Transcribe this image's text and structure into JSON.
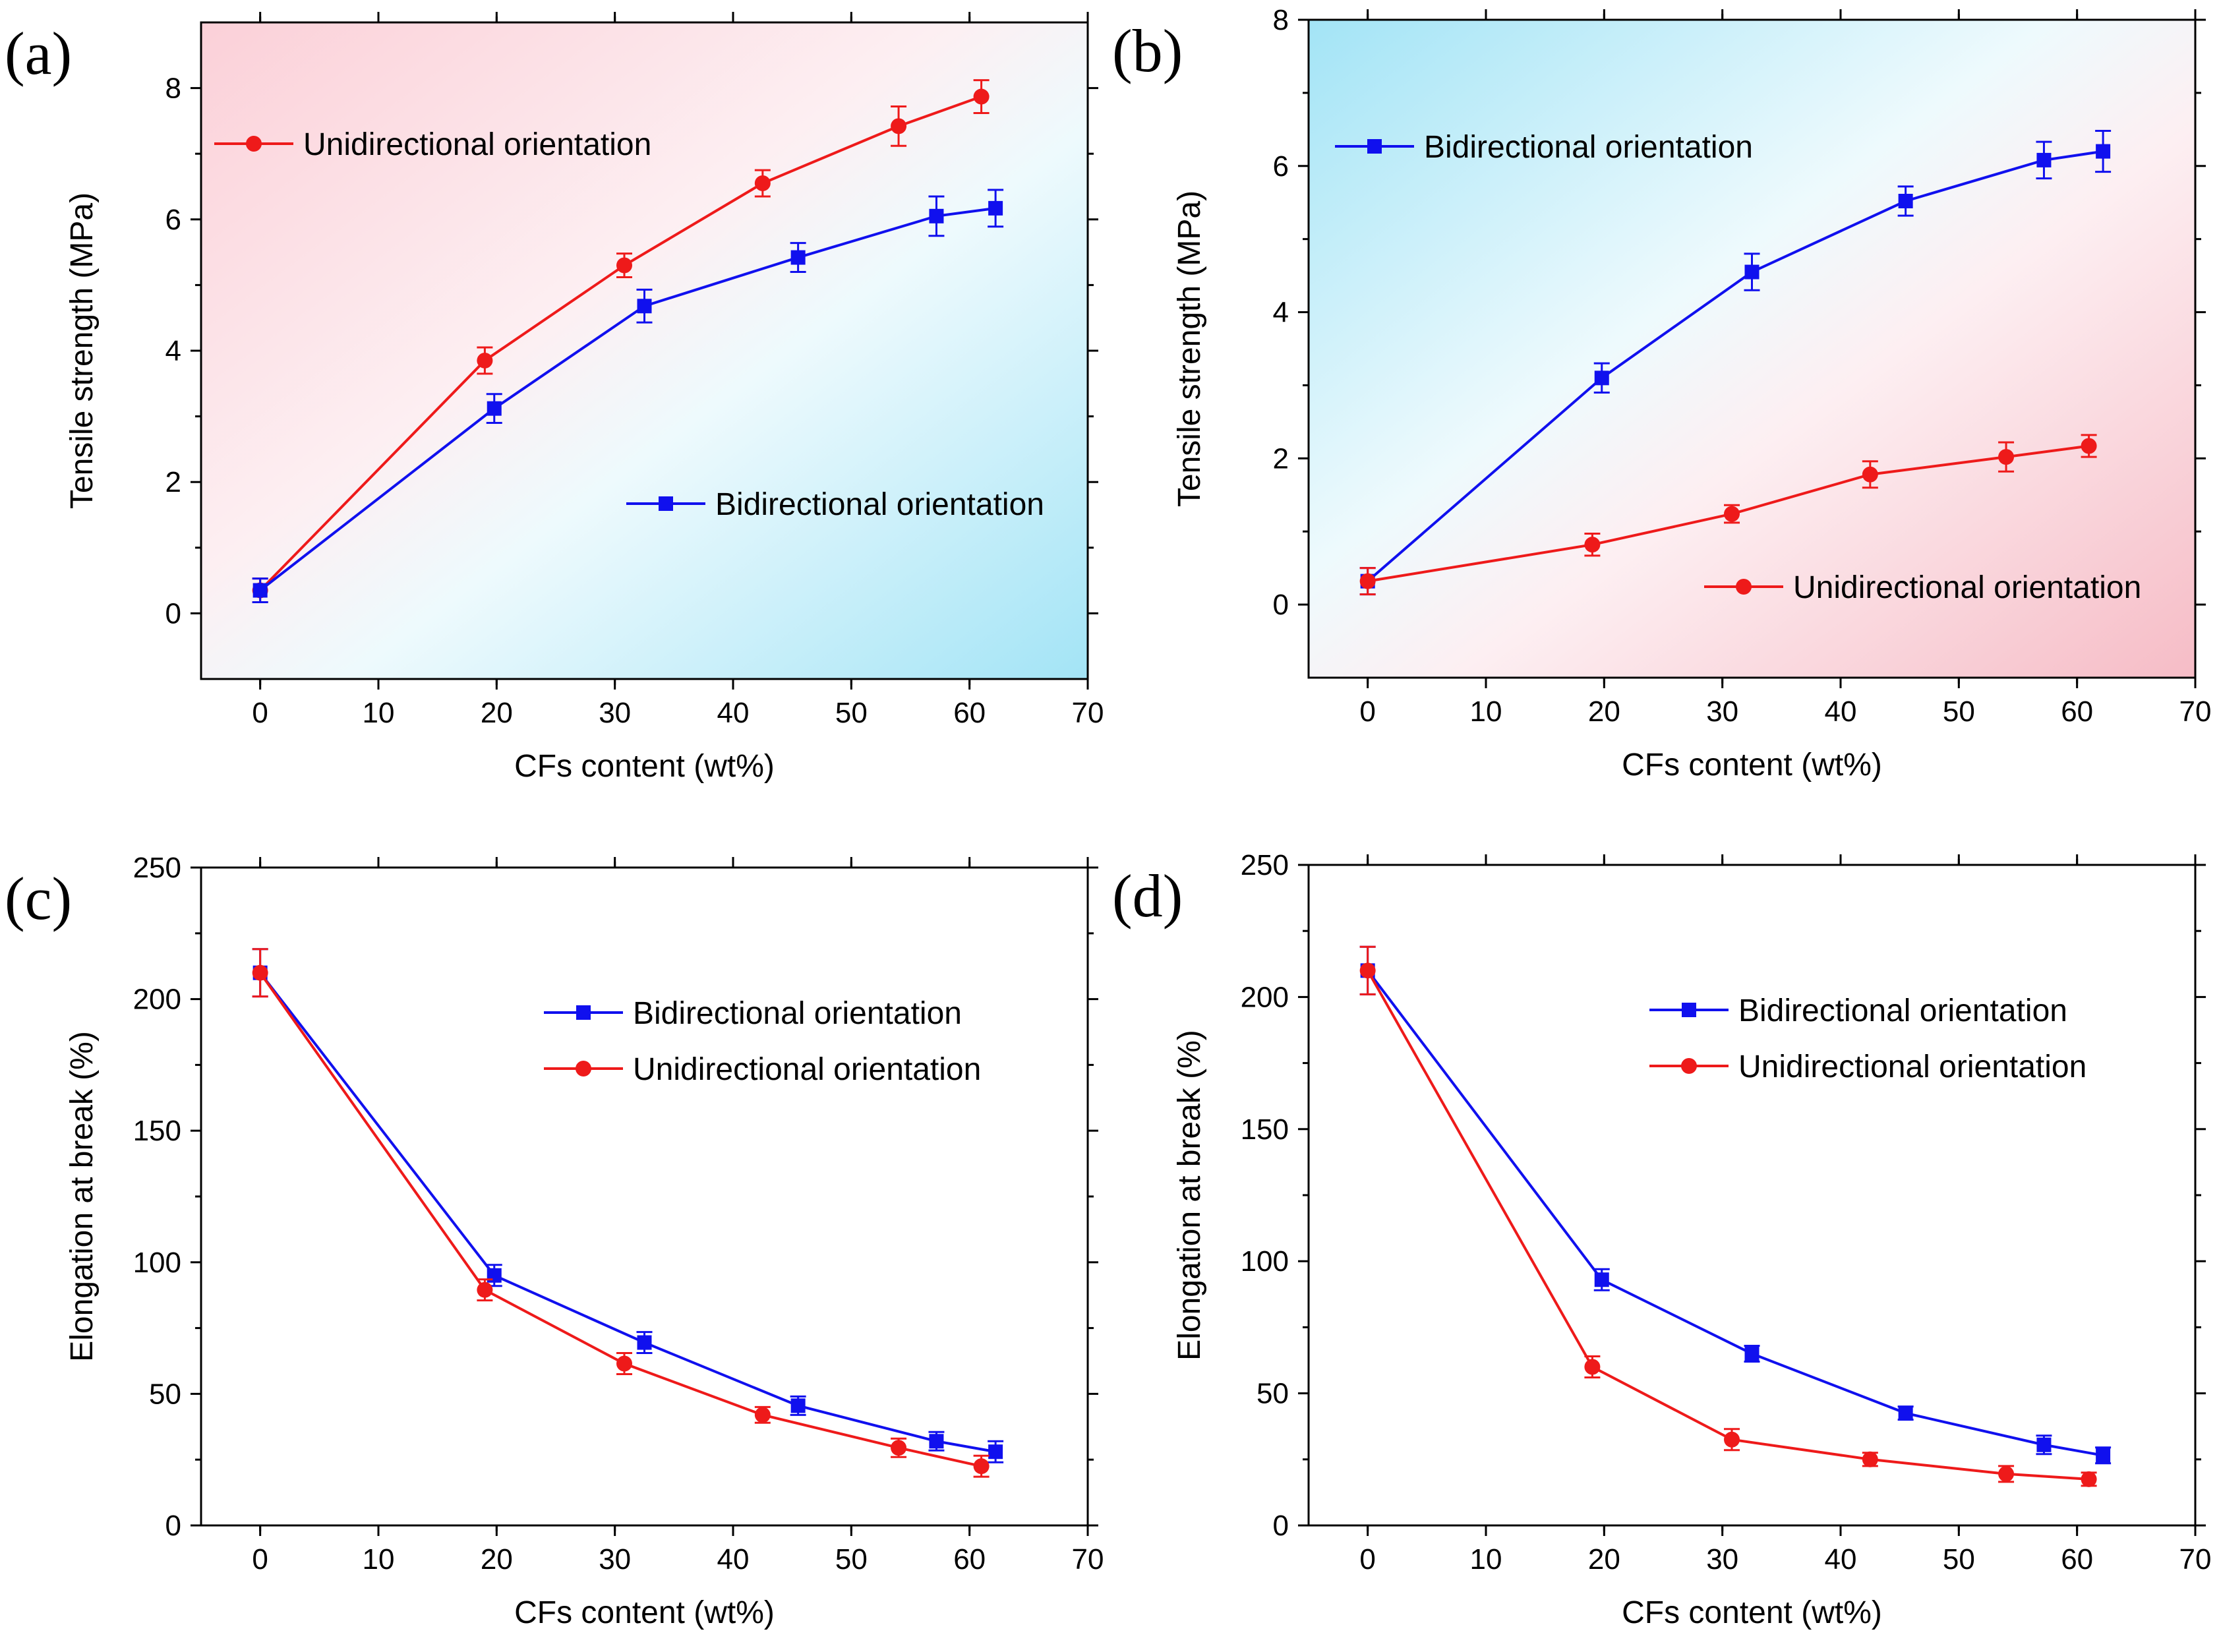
{
  "colors": {
    "bidirectional": "#1010ee",
    "unidirectional": "#ee1a1a",
    "bg_pink": "#fbd4dc",
    "bg_cyan": "#a8e6f7"
  },
  "chart_data": [
    {
      "panel": "(a)",
      "type": "line",
      "xlabel": "CFs content (wt%)",
      "ylabel": "Tensile strength (MPa)",
      "xlim": [
        -5,
        70
      ],
      "ylim": [
        -1,
        9
      ],
      "xticks": [
        0,
        10,
        20,
        30,
        40,
        50,
        60,
        70
      ],
      "yticks": [
        0,
        2,
        4,
        6,
        8
      ],
      "background": "pink-to-cyan",
      "legend": [
        {
          "series": "unidirectional",
          "placement": "upper-left"
        },
        {
          "series": "bidirectional",
          "placement": "lower-right"
        }
      ],
      "series": [
        {
          "key": "unidirectional",
          "name": "Unidirectional orientation",
          "marker": "circle",
          "x": [
            0,
            19,
            30.8,
            42.5,
            54,
            61
          ],
          "y": [
            0.35,
            3.85,
            5.3,
            6.55,
            7.42,
            7.87
          ],
          "err": [
            0.18,
            0.2,
            0.18,
            0.2,
            0.3,
            0.25
          ]
        },
        {
          "key": "bidirectional",
          "name": "Bidirectional orientation",
          "marker": "square",
          "x": [
            0,
            19.8,
            32.5,
            45.5,
            57.2,
            62.2
          ],
          "y": [
            0.35,
            3.12,
            4.68,
            5.42,
            6.05,
            6.17
          ],
          "err": [
            0.18,
            0.22,
            0.25,
            0.22,
            0.3,
            0.28
          ]
        }
      ]
    },
    {
      "panel": "(b)",
      "type": "line",
      "xlabel": "CFs content (wt%)",
      "ylabel": "Tensile strength (MPa)",
      "xlim": [
        -5,
        70
      ],
      "ylim": [
        -1,
        8
      ],
      "xticks": [
        0,
        10,
        20,
        30,
        40,
        50,
        60,
        70
      ],
      "yticks": [
        0,
        2,
        4,
        6,
        8
      ],
      "background": "cyan-to-pink",
      "legend": [
        {
          "series": "bidirectional",
          "placement": "upper-left"
        },
        {
          "series": "unidirectional",
          "placement": "lower-right"
        }
      ],
      "series": [
        {
          "key": "bidirectional",
          "name": "Bidirectional orientation",
          "marker": "square",
          "x": [
            0,
            19.8,
            32.5,
            45.5,
            57.2,
            62.2
          ],
          "y": [
            0.32,
            3.1,
            4.55,
            5.52,
            6.08,
            6.2
          ],
          "err": [
            0.18,
            0.2,
            0.25,
            0.2,
            0.25,
            0.28
          ]
        },
        {
          "key": "unidirectional",
          "name": "Unidirectional orientation",
          "marker": "circle",
          "x": [
            0,
            19,
            30.8,
            42.5,
            54,
            61
          ],
          "y": [
            0.32,
            0.82,
            1.24,
            1.78,
            2.02,
            2.17
          ],
          "err": [
            0.18,
            0.15,
            0.12,
            0.18,
            0.2,
            0.15
          ]
        }
      ]
    },
    {
      "panel": "(c)",
      "type": "line",
      "xlabel": "CFs content (wt%)",
      "ylabel": "Elongation at break (%)",
      "xlim": [
        -5,
        70
      ],
      "ylim": [
        0,
        250
      ],
      "xticks": [
        0,
        10,
        20,
        30,
        40,
        50,
        60,
        70
      ],
      "yticks": [
        0,
        50,
        100,
        150,
        200,
        250
      ],
      "background": "white",
      "legend": [
        {
          "series": "bidirectional",
          "placement": "upper-right"
        },
        {
          "series": "unidirectional",
          "placement": "upper-right"
        }
      ],
      "series": [
        {
          "key": "bidirectional",
          "name": "Bidirectional orientation",
          "marker": "square",
          "x": [
            0,
            19.8,
            32.5,
            45.5,
            57.2,
            62.2
          ],
          "y": [
            210,
            95,
            69.5,
            45.5,
            32,
            28
          ],
          "err": [
            9,
            4,
            4,
            3.5,
            3.5,
            4
          ]
        },
        {
          "key": "unidirectional",
          "name": "Unidirectional orientation",
          "marker": "circle",
          "x": [
            0,
            19,
            30.8,
            42.5,
            54,
            61
          ],
          "y": [
            210,
            89.5,
            61.5,
            42,
            29.5,
            22.5
          ],
          "err": [
            9,
            4,
            4,
            3,
            3.5,
            4
          ]
        }
      ]
    },
    {
      "panel": "(d)",
      "type": "line",
      "xlabel": "CFs content (wt%)",
      "ylabel": "Elongation at break (%)",
      "xlim": [
        -5,
        70
      ],
      "ylim": [
        0,
        250
      ],
      "xticks": [
        0,
        10,
        20,
        30,
        40,
        50,
        60,
        70
      ],
      "yticks": [
        0,
        50,
        100,
        150,
        200,
        250
      ],
      "background": "white",
      "legend": [
        {
          "series": "bidirectional",
          "placement": "upper-right"
        },
        {
          "series": "unidirectional",
          "placement": "upper-right"
        }
      ],
      "series": [
        {
          "key": "bidirectional",
          "name": "Bidirectional orientation",
          "marker": "square",
          "x": [
            0,
            19.8,
            32.5,
            45.5,
            57.2,
            62.2
          ],
          "y": [
            210,
            93,
            65,
            42.5,
            30.5,
            26.5
          ],
          "err": [
            9,
            4,
            3,
            2.5,
            3.5,
            3
          ]
        },
        {
          "key": "unidirectional",
          "name": "Unidirectional orientation",
          "marker": "circle",
          "x": [
            0,
            19,
            30.8,
            42.5,
            54,
            61
          ],
          "y": [
            210,
            60,
            32.5,
            25,
            19.5,
            17.5
          ],
          "err": [
            9,
            4,
            4,
            2.5,
            3,
            2.5
          ]
        }
      ]
    }
  ]
}
